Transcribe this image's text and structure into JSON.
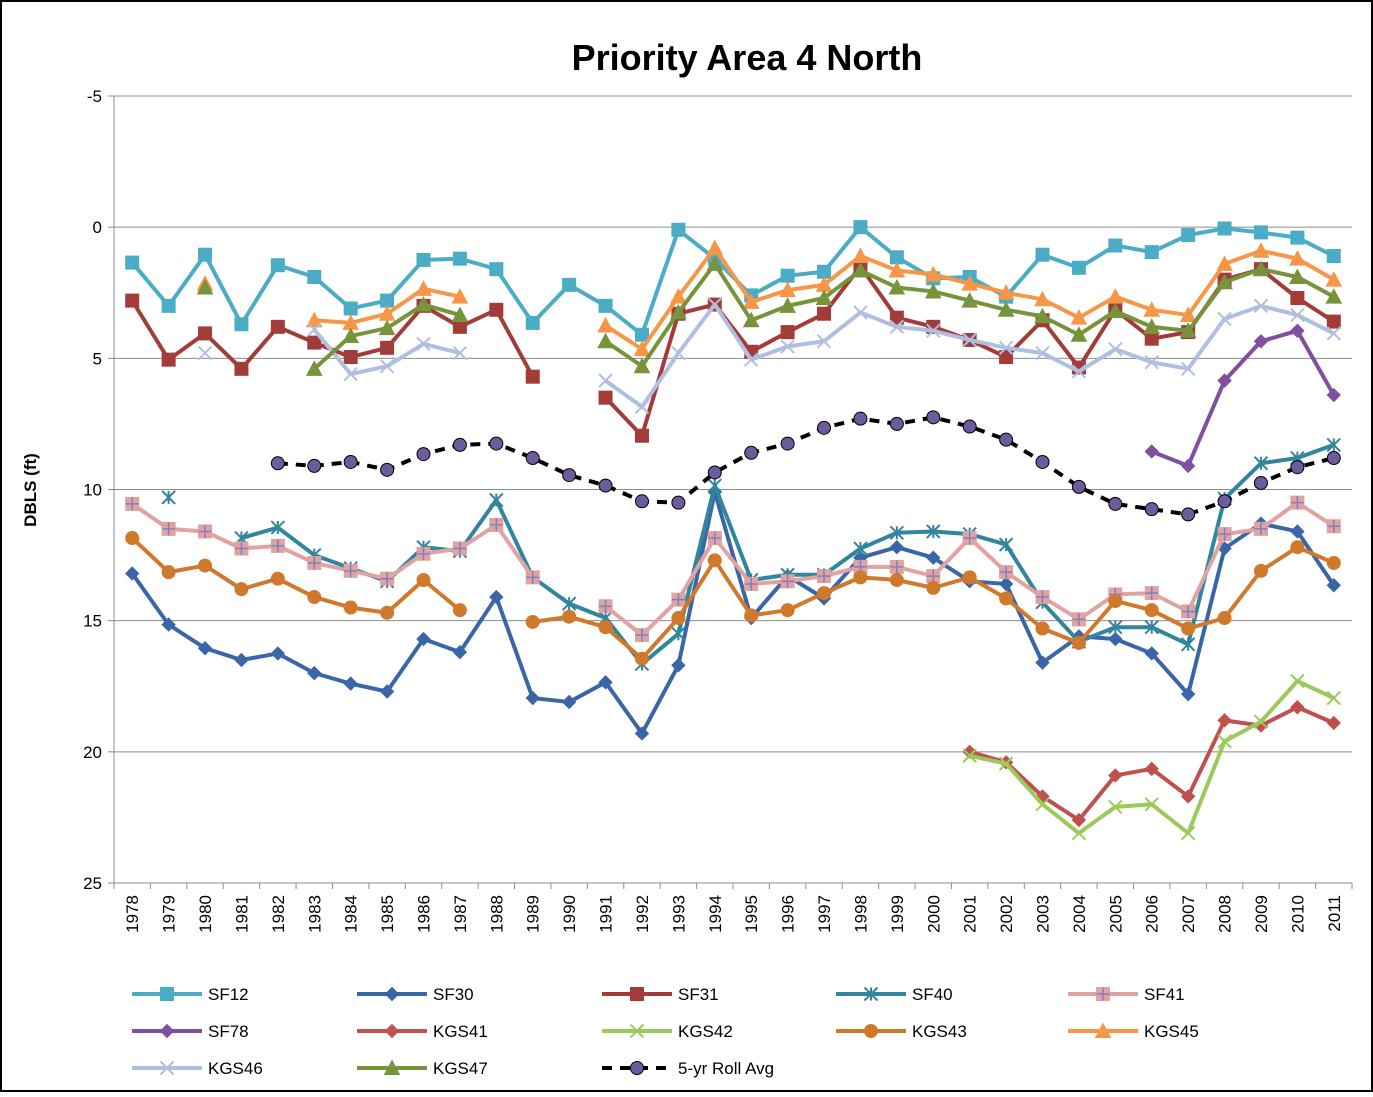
{
  "chart_data": {
    "type": "line",
    "title": "Priority Area 4 North",
    "y_label": "DBLS (ft)",
    "categories": [
      "1978",
      "1979",
      "1980",
      "1981",
      "1982",
      "1983",
      "1984",
      "1985",
      "1986",
      "1987",
      "1988",
      "1989",
      "1990",
      "1991",
      "1992",
      "1993",
      "1994",
      "1995",
      "1996",
      "1997",
      "1998",
      "1999",
      "2000",
      "2001",
      "2002",
      "2003",
      "2004",
      "2005",
      "2006",
      "2007",
      "2008",
      "2009",
      "2010",
      "2011"
    ],
    "ylim": [
      -5,
      25
    ],
    "yticks": [
      -5,
      0,
      5,
      10,
      15,
      20,
      25
    ],
    "y_inverted": true,
    "grid": true,
    "legend": "bottom",
    "series": [
      {
        "name": "SF12",
        "color": "#4bacc6",
        "marker": "square",
        "values": [
          1.35,
          3.0,
          1.05,
          3.7,
          1.45,
          1.9,
          3.1,
          2.8,
          1.25,
          1.2,
          1.6,
          3.65,
          2.2,
          3.0,
          4.1,
          0.1,
          1.2,
          2.6,
          1.85,
          1.7,
          0,
          1.15,
          1.95,
          1.9,
          2.65,
          1.05,
          1.55,
          0.7,
          0.95,
          0.3,
          0.05,
          0.2,
          0.4,
          1.1
        ]
      },
      {
        "name": "SF30",
        "color": "#3a66a7",
        "marker": "diamond",
        "values": [
          13.2,
          15.15,
          16.05,
          16.5,
          16.25,
          17.0,
          17.4,
          17.7,
          15.7,
          16.2,
          14.1,
          17.95,
          18.1,
          17.35,
          19.3,
          16.7,
          10.1,
          14.9,
          13.3,
          14.15,
          12.6,
          12.2,
          12.6,
          13.5,
          13.6,
          16.6,
          15.6,
          15.7,
          16.25,
          17.8,
          12.25,
          11.3,
          11.6,
          13.65
        ]
      },
      {
        "name": "SF31",
        "color": "#a33c38",
        "marker": "square",
        "values": [
          2.8,
          5.05,
          4.05,
          5.4,
          3.8,
          4.4,
          4.95,
          4.6,
          3.0,
          3.8,
          3.15,
          5.7,
          null,
          6.5,
          7.95,
          3.3,
          2.95,
          4.75,
          4.0,
          3.3,
          1.5,
          3.45,
          3.8,
          4.3,
          4.95,
          3.55,
          5.35,
          3.15,
          4.25,
          4.0,
          2.0,
          1.6,
          2.7,
          3.6
        ]
      },
      {
        "name": "SF40",
        "color": "#31859c",
        "marker": "star",
        "values": [
          null,
          10.3,
          null,
          11.85,
          11.45,
          12.5,
          13.0,
          13.5,
          12.2,
          12.35,
          10.4,
          13.35,
          14.35,
          14.9,
          16.65,
          15.5,
          9.85,
          13.45,
          13.25,
          13.25,
          12.25,
          11.65,
          11.6,
          11.7,
          12.1,
          14.3,
          15.8,
          15.25,
          15.25,
          15.9,
          10.35,
          9.0,
          8.8,
          8.3
        ]
      },
      {
        "name": "SF41",
        "color": "#e0a3a1",
        "marker": "plus",
        "values": [
          10.55,
          11.5,
          11.6,
          12.25,
          12.15,
          12.8,
          13.1,
          13.4,
          12.45,
          12.25,
          11.35,
          13.35,
          null,
          14.45,
          15.55,
          14.2,
          11.85,
          13.6,
          13.5,
          13.3,
          12.95,
          12.95,
          13.3,
          11.85,
          13.15,
          14.1,
          14.95,
          14.0,
          13.95,
          14.65,
          11.7,
          11.5,
          10.5,
          11.4
        ]
      },
      {
        "name": "SF78",
        "color": "#7f4fa0",
        "marker": "diamond",
        "values": [
          null,
          null,
          null,
          null,
          null,
          null,
          null,
          null,
          null,
          null,
          null,
          null,
          null,
          null,
          null,
          null,
          null,
          null,
          null,
          null,
          null,
          null,
          null,
          null,
          null,
          null,
          null,
          null,
          8.55,
          9.1,
          5.85,
          4.35,
          3.95,
          6.4
        ]
      },
      {
        "name": "KGS41",
        "color": "#c0504d",
        "marker": "diamond",
        "values": [
          null,
          null,
          null,
          null,
          null,
          null,
          null,
          null,
          null,
          null,
          null,
          null,
          null,
          null,
          null,
          null,
          null,
          null,
          null,
          null,
          null,
          null,
          null,
          20.0,
          20.4,
          21.7,
          22.6,
          20.9,
          20.65,
          21.7,
          18.8,
          19.0,
          18.3,
          18.9
        ]
      },
      {
        "name": "KGS42",
        "color": "#9bca5a",
        "marker": "x",
        "values": [
          null,
          null,
          null,
          null,
          null,
          null,
          null,
          null,
          null,
          null,
          null,
          null,
          null,
          null,
          null,
          null,
          null,
          null,
          null,
          null,
          null,
          null,
          null,
          20.15,
          20.45,
          22.0,
          23.1,
          22.1,
          22.0,
          23.1,
          19.6,
          18.85,
          17.3,
          17.95
        ]
      },
      {
        "name": "KGS43",
        "color": "#d0782c",
        "marker": "circle",
        "values": [
          11.85,
          13.15,
          12.9,
          13.8,
          13.4,
          14.1,
          14.5,
          14.7,
          13.45,
          14.6,
          null,
          15.05,
          14.85,
          15.25,
          16.45,
          14.9,
          12.7,
          14.8,
          14.6,
          13.95,
          13.35,
          13.45,
          13.75,
          13.35,
          14.15,
          15.3,
          15.85,
          14.25,
          14.6,
          15.3,
          14.9,
          13.1,
          12.2,
          12.8
        ]
      },
      {
        "name": "KGS45",
        "color": "#f79646",
        "marker": "triangle",
        "values": [
          null,
          null,
          2.15,
          null,
          null,
          3.55,
          3.65,
          3.3,
          2.35,
          2.65,
          null,
          null,
          null,
          3.75,
          4.65,
          2.65,
          0.8,
          2.85,
          2.4,
          2.2,
          1.1,
          1.65,
          1.8,
          2.15,
          2.5,
          2.75,
          3.45,
          2.65,
          3.15,
          3.35,
          1.4,
          0.9,
          1.2,
          2.0
        ]
      },
      {
        "name": "KGS46",
        "color": "#b0bfdf",
        "marker": "x",
        "values": [
          null,
          null,
          4.8,
          null,
          null,
          3.9,
          5.6,
          5.3,
          4.45,
          4.8,
          null,
          null,
          null,
          5.85,
          6.85,
          4.8,
          2.95,
          5.05,
          4.55,
          4.35,
          3.25,
          3.8,
          3.95,
          4.3,
          4.6,
          4.8,
          5.5,
          4.65,
          5.15,
          5.4,
          3.5,
          3.0,
          3.35,
          4.05
        ]
      },
      {
        "name": "KGS47",
        "color": "#77933c",
        "marker": "triangle",
        "values": [
          null,
          null,
          2.3,
          null,
          null,
          5.4,
          4.15,
          3.85,
          2.95,
          3.35,
          null,
          null,
          null,
          4.35,
          5.3,
          3.25,
          1.4,
          3.55,
          3.0,
          2.7,
          1.65,
          2.3,
          2.45,
          2.8,
          3.15,
          3.4,
          4.1,
          3.2,
          3.8,
          3.95,
          2.1,
          1.6,
          1.9,
          2.65
        ]
      },
      {
        "name": "5-yr Roll Avg",
        "color": "#000000",
        "marker": "circle",
        "dashed": true,
        "values": [
          null,
          null,
          null,
          null,
          9.0,
          9.1,
          8.95,
          9.25,
          8.65,
          8.3,
          8.25,
          8.8,
          9.45,
          9.85,
          10.45,
          10.5,
          9.35,
          8.6,
          8.25,
          7.65,
          7.3,
          7.5,
          7.25,
          7.6,
          8.1,
          8.95,
          9.9,
          10.55,
          10.75,
          10.95,
          10.45,
          9.75,
          9.15,
          8.8
        ]
      }
    ]
  }
}
